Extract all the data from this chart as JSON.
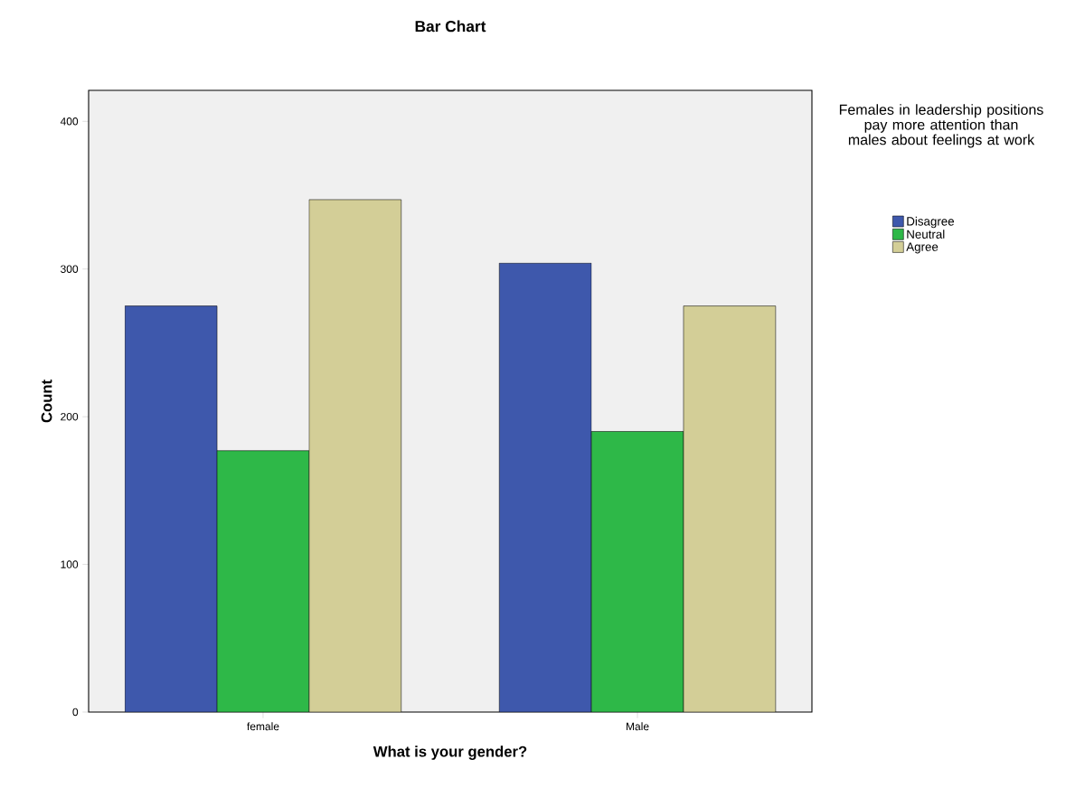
{
  "chart_data": {
    "type": "bar",
    "title": "Bar Chart",
    "xlabel": "What is your gender?",
    "ylabel": "Count",
    "legend_title": "Females in leadership positions pay more attention than males about feelings at work",
    "categories": [
      "female",
      "Male"
    ],
    "series": [
      {
        "name": "Disagree",
        "color": "#3e58ac",
        "values": [
          275,
          304
        ]
      },
      {
        "name": "Neutral",
        "color": "#2eb848",
        "values": [
          177,
          190
        ]
      },
      {
        "name": "Agree",
        "color": "#d3ce97",
        "values": [
          347,
          275
        ]
      }
    ],
    "ylim": [
      0,
      421
    ],
    "yticks": [
      0,
      100,
      200,
      300,
      400
    ],
    "legend": "right"
  }
}
